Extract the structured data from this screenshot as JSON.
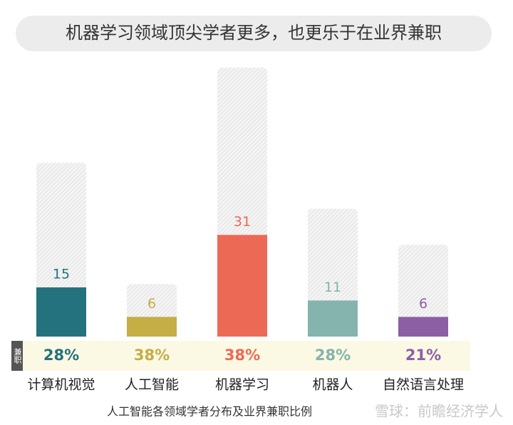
{
  "chart_data": {
    "type": "bar",
    "title": "机器学习领域顶尖学者更多，也更乐于在业界兼职",
    "categories": [
      "计算机视觉",
      "人工智能",
      "机器学习",
      "机器人",
      "自然语言处理"
    ],
    "values": [
      15,
      6,
      31,
      11,
      6
    ],
    "totals": [
      53,
      16,
      82,
      39,
      28
    ],
    "colors": [
      "#23727d",
      "#c4ae45",
      "#ec6a55",
      "#84b4ad",
      "#8c5fa5"
    ],
    "percentages": [
      28,
      38,
      38,
      28,
      21
    ],
    "percent_labels": [
      "28%",
      "38%",
      "38%",
      "28%",
      "21%"
    ],
    "row_label": "兼职",
    "caption": "人工智能各领域学者分布及业界兼职比例",
    "watermark": "雪球：前瞻经济学人"
  }
}
